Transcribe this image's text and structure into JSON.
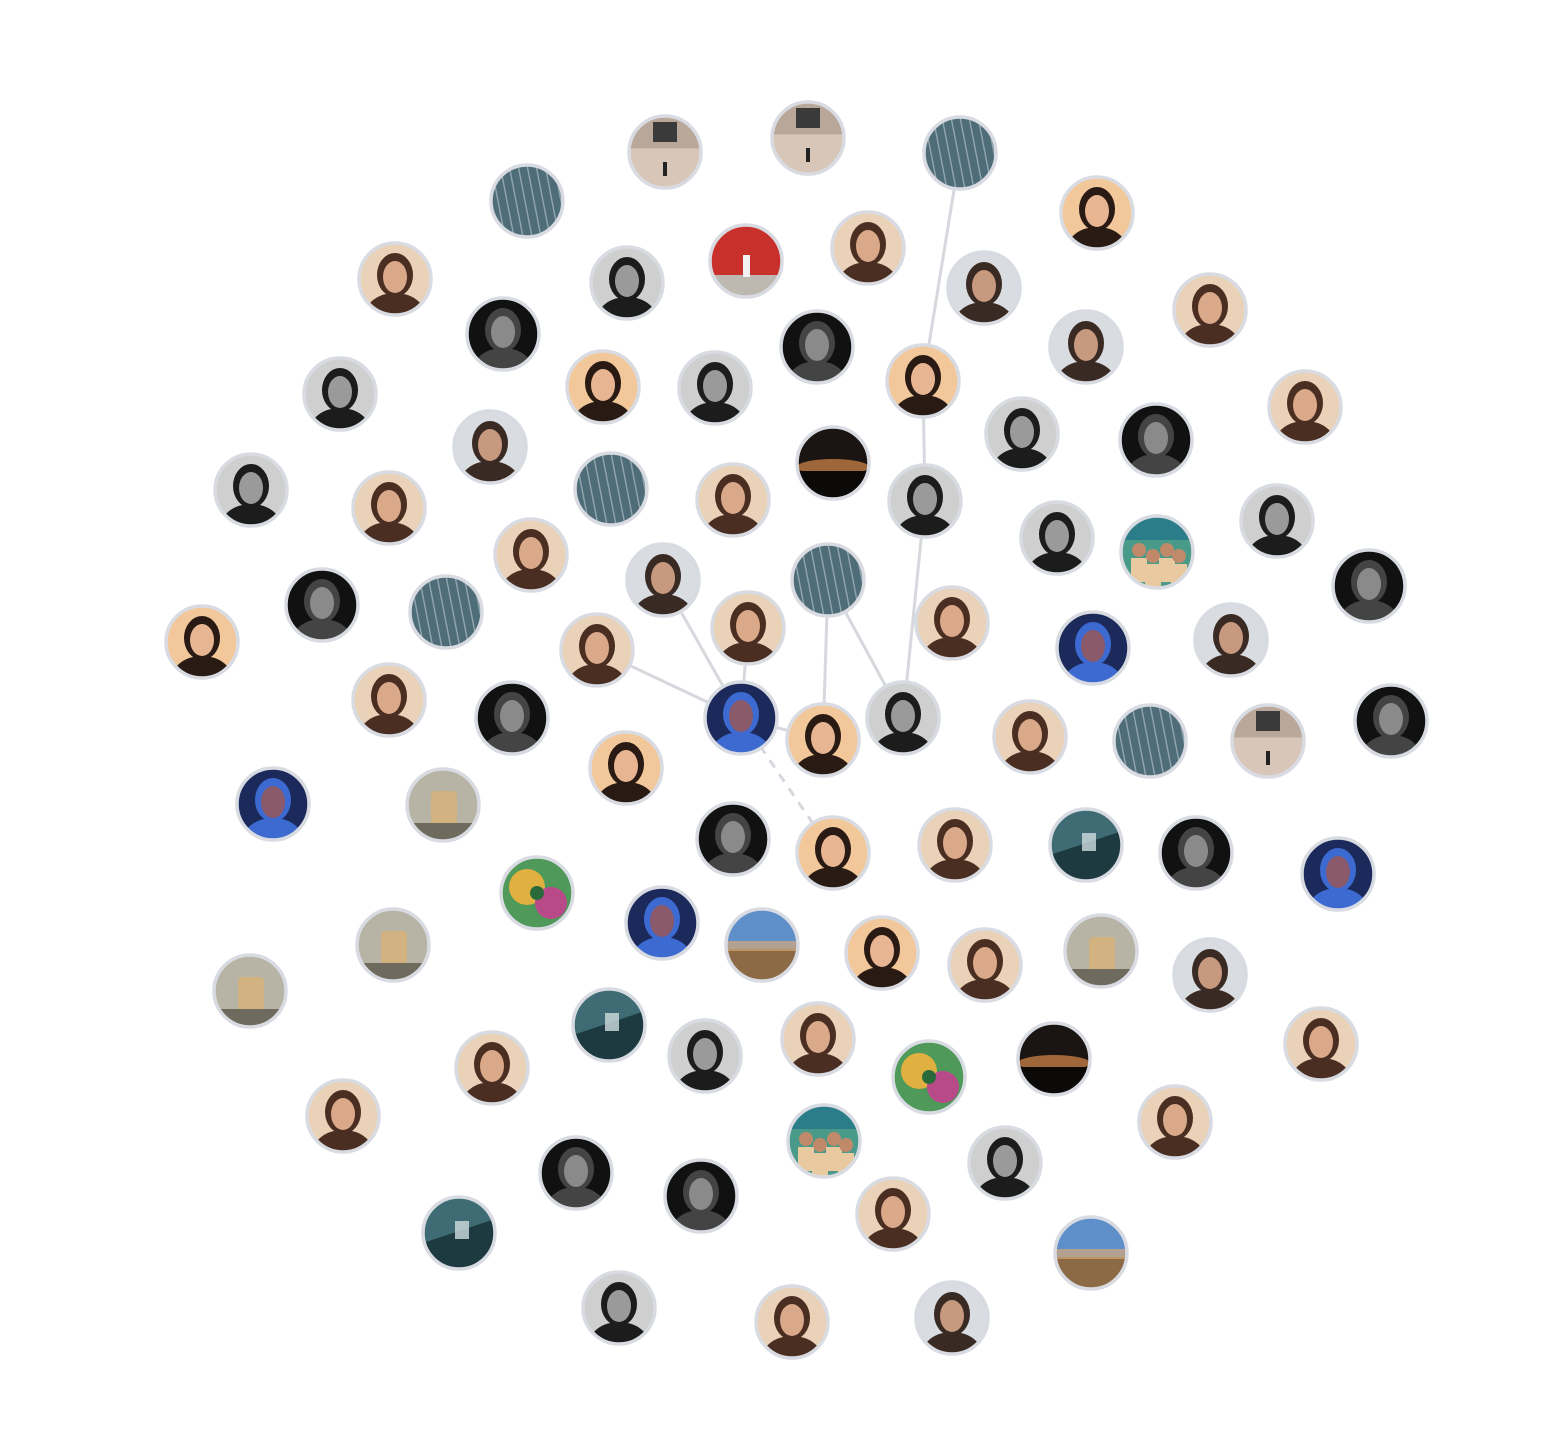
{
  "graph": {
    "center_node": "self",
    "palettes": {
      "warm_portrait": {
        "bg": "#e9d2b8",
        "accent": "#4a2e22",
        "skin": "#d9a98a"
      },
      "bokeh_portrait": {
        "bg": "#f2c89a",
        "accent": "#2a1a14",
        "skin": "#e8b592"
      },
      "dark_portrait": {
        "bg": "#111111",
        "accent": "#444444",
        "skin": "#8a8a8a"
      },
      "bw_portrait": {
        "bg": "#cfcfcf",
        "accent": "#1c1c1c",
        "skin": "#9a9a9a"
      },
      "teal_building": {
        "bg": "#4f6d78",
        "accent": "#c9d6dc",
        "skin": "#2f4550"
      },
      "street_building": {
        "bg": "#d8c6b8",
        "accent": "#3a3a3a",
        "skin": "#8d7b6f"
      },
      "landscape_sky": {
        "bg": "#5f8fc9",
        "accent": "#8b6a45",
        "skin": "#d6a878"
      },
      "neon_blue": {
        "bg": "#1b2a5a",
        "accent": "#3c6ad0",
        "skin": "#8a5a6a"
      },
      "red_wall": {
        "bg": "#c8312b",
        "accent": "#f2f2f2",
        "skin": "#444444"
      },
      "sunset_dark": {
        "bg": "#1a1512",
        "accent": "#d98a4a",
        "skin": "#2a2a2a"
      },
      "teal_car": {
        "bg": "#3e6b74",
        "accent": "#cfdde0",
        "skin": "#1d3a40"
      },
      "colorful_art": {
        "bg": "#4f9a5a",
        "accent": "#e0b040",
        "skin": "#b84a8a"
      },
      "coffee_glass": {
        "bg": "#b7b3a5",
        "accent": "#d7b27a",
        "skin": "#6f6a5e"
      },
      "group_beach": {
        "bg": "#4a9a8a",
        "accent": "#e8c9a0",
        "skin": "#c08a6a"
      },
      "grey_portrait": {
        "bg": "#d9dde2",
        "accent": "#3a2a24",
        "skin": "#c79a80"
      }
    },
    "nodes": [
      {
        "id": "self",
        "palette": "neon_blue",
        "icon": "man-smiling-photo"
      },
      {
        "id": "n1",
        "palette": "grey_portrait",
        "icon": "woman-portrait-photo"
      },
      {
        "id": "n2",
        "palette": "warm_portrait",
        "icon": "woman-field-photo"
      },
      {
        "id": "n3",
        "palette": "warm_portrait",
        "icon": "man-outdoors-photo"
      },
      {
        "id": "n4",
        "palette": "teal_building",
        "icon": "woman-closeup-photo"
      },
      {
        "id": "n5",
        "palette": "bw_portrait",
        "icon": "man-bw-photo"
      },
      {
        "id": "n6",
        "palette": "bokeh_portrait",
        "icon": "woman-glasses-photo"
      },
      {
        "id": "n7",
        "palette": "bokeh_portrait",
        "icon": "woman-lights-photo"
      },
      {
        "id": "n8",
        "palette": "bw_portrait",
        "icon": "woman-braids-photo"
      },
      {
        "id": "n9",
        "palette": "bokeh_portrait",
        "icon": "woman-blonde-glasses-photo"
      },
      {
        "id": "n10",
        "palette": "teal_building",
        "icon": "skyscraper-photo"
      }
    ],
    "edges": [
      {
        "from": "self",
        "to": "n1",
        "style": "solid"
      },
      {
        "from": "self",
        "to": "n2",
        "style": "solid"
      },
      {
        "from": "self",
        "to": "n3",
        "style": "solid"
      },
      {
        "from": "self",
        "to": "n6",
        "style": "solid"
      },
      {
        "from": "self",
        "to": "n7",
        "style": "dashed"
      },
      {
        "from": "n6",
        "to": "n4",
        "style": "solid"
      },
      {
        "from": "n5",
        "to": "n4",
        "style": "solid"
      },
      {
        "from": "n5",
        "to": "n8",
        "style": "solid"
      },
      {
        "from": "n8",
        "to": "n9",
        "style": "solid"
      },
      {
        "from": "n9",
        "to": "n10",
        "style": "solid"
      }
    ],
    "other_node_palettes": [
      "street_building",
      "street_building",
      "teal_building",
      "bokeh_portrait",
      "warm_portrait",
      "bw_portrait",
      "red_wall",
      "warm_portrait",
      "grey_portrait",
      "warm_portrait",
      "dark_portrait",
      "dark_portrait",
      "bokeh_portrait",
      "bw_portrait",
      "grey_portrait",
      "bw_portrait",
      "warm_portrait",
      "grey_portrait",
      "sunset_dark",
      "bw_portrait",
      "dark_portrait",
      "bw_portrait",
      "warm_portrait",
      "teal_building",
      "warm_portrait",
      "bw_portrait",
      "warm_portrait",
      "bw_portrait",
      "group_beach",
      "dark_portrait",
      "bokeh_portrait",
      "dark_portrait",
      "teal_building",
      "warm_portrait",
      "neon_blue",
      "grey_portrait",
      "warm_portrait",
      "dark_portrait",
      "warm_portrait",
      "teal_building",
      "street_building",
      "dark_portrait",
      "neon_blue",
      "coffee_glass",
      "bokeh_portrait",
      "dark_portrait",
      "warm_portrait",
      "teal_car",
      "dark_portrait",
      "neon_blue",
      "colorful_art",
      "coffee_glass",
      "neon_blue",
      "landscape_sky",
      "bokeh_portrait",
      "warm_portrait",
      "coffee_glass",
      "grey_portrait",
      "coffee_glass",
      "teal_car",
      "bw_portrait",
      "warm_portrait",
      "warm_portrait",
      "colorful_art",
      "sunset_dark",
      "warm_portrait",
      "warm_portrait",
      "dark_portrait",
      "group_beach",
      "warm_portrait",
      "teal_car",
      "bw_portrait",
      "dark_portrait",
      "warm_portrait",
      "landscape_sky",
      "bw_portrait",
      "warm_portrait",
      "grey_portrait",
      "warm_portrait",
      "dark_portrait",
      "bw_portrait",
      "bokeh_portrait"
    ]
  }
}
